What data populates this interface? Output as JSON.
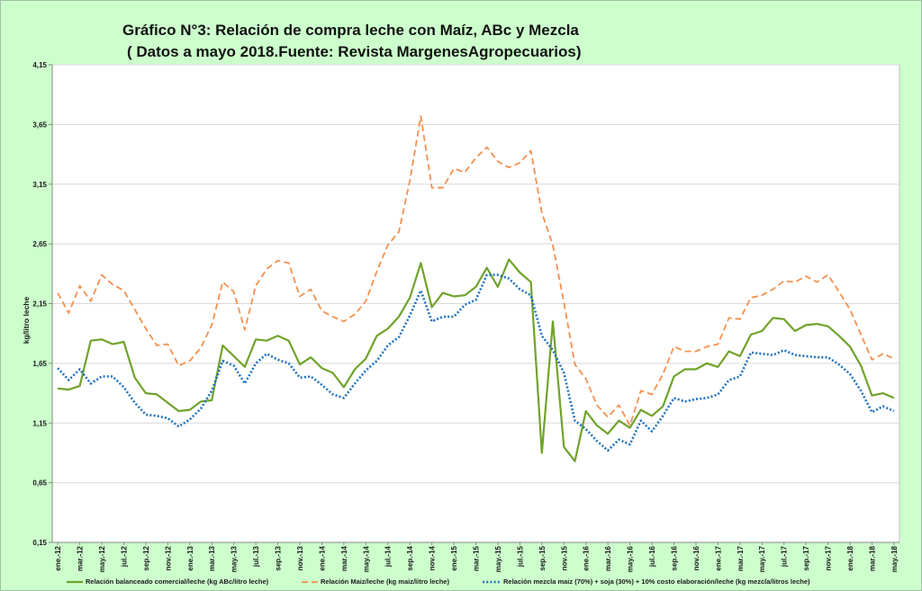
{
  "chart_data": {
    "type": "line",
    "title": "Gráfico N°3: Relación de compra leche con Maíz, ABc y Mezcla",
    "subtitle": "( Datos a mayo 2018.Fuente: Revista MargenesAgropecuarios)",
    "ylabel": "kg/litro leche",
    "ylim": [
      0.15,
      4.15
    ],
    "y_tick_labels": [
      "0,15",
      "0,65",
      "1,15",
      "1,65",
      "2,15",
      "2,65",
      "3,15",
      "3,65",
      "4,15"
    ],
    "x_tick_labels": [
      "ene.-12",
      "mar.-12",
      "may.-12",
      "jul.-12",
      "sep.-12",
      "nov.-12",
      "ene.-13",
      "mar.-13",
      "may.-13",
      "jul.-13",
      "sep.-13",
      "nov.-13",
      "ene.-14",
      "mar.-14",
      "may.-14",
      "jul.-14",
      "sep.-14",
      "nov.-14",
      "ene.-15",
      "mar.-15",
      "may.-15",
      "jul.-15",
      "sep.-15",
      "nov.-15",
      "ene.-16",
      "mar.-16",
      "may.-16",
      "jul.-16",
      "sep.-16",
      "nov.-16",
      "ene.-17",
      "mar.-17",
      "may.-17",
      "jul.-17",
      "sep.-17",
      "nov.-17",
      "ene.-18",
      "mar.-18",
      "may.-18"
    ],
    "grid": true,
    "legend_position": "bottom",
    "series": [
      {
        "name": "Relación balanceado comercial/leche (kg ABc/litro leche)",
        "color": "#6fa32a",
        "line_style": "solid",
        "values": [
          1.44,
          1.43,
          1.46,
          1.84,
          1.85,
          1.81,
          1.83,
          1.53,
          1.4,
          1.39,
          1.32,
          1.25,
          1.26,
          1.33,
          1.34,
          1.8,
          1.71,
          1.62,
          1.85,
          1.84,
          1.88,
          1.84,
          1.64,
          1.7,
          1.61,
          1.57,
          1.45,
          1.6,
          1.69,
          1.88,
          1.94,
          2.04,
          2.2,
          2.49,
          2.12,
          2.24,
          2.21,
          2.22,
          2.29,
          2.45,
          2.29,
          2.52,
          2.41,
          2.33,
          0.9,
          2.0,
          0.95,
          0.83,
          1.25,
          1.13,
          1.06,
          1.17,
          1.11,
          1.26,
          1.21,
          1.29,
          1.54,
          1.6,
          1.6,
          1.65,
          1.62,
          1.75,
          1.71,
          1.89,
          1.92,
          2.03,
          2.02,
          1.92,
          1.97,
          1.98,
          1.96,
          1.88,
          1.79,
          1.63,
          1.38,
          1.4,
          1.36
        ]
      },
      {
        "name": "Relación Maiz/leche (kg maiz/litro leche)",
        "color": "#f4904e",
        "line_style": "dashed",
        "values": [
          2.24,
          2.07,
          2.3,
          2.17,
          2.39,
          2.31,
          2.26,
          2.1,
          1.94,
          1.8,
          1.81,
          1.63,
          1.67,
          1.78,
          1.97,
          2.33,
          2.25,
          1.93,
          2.3,
          2.44,
          2.51,
          2.49,
          2.21,
          2.27,
          2.09,
          2.04,
          2.0,
          2.06,
          2.17,
          2.42,
          2.64,
          2.75,
          3.18,
          3.72,
          3.12,
          3.12,
          3.28,
          3.25,
          3.37,
          3.46,
          3.34,
          3.29,
          3.33,
          3.43,
          2.91,
          2.64,
          2.16,
          1.64,
          1.52,
          1.3,
          1.2,
          1.3,
          1.13,
          1.42,
          1.39,
          1.56,
          1.79,
          1.75,
          1.75,
          1.79,
          1.81,
          2.03,
          2.02,
          2.2,
          2.22,
          2.27,
          2.34,
          2.33,
          2.38,
          2.33,
          2.39,
          2.25,
          2.1,
          1.89,
          1.68,
          1.73,
          1.69
        ]
      },
      {
        "name": "Relación mezcla maiz (70%) + soja (30%) + 10% costo elaboración/leche (kg mezcla/litros leche)",
        "color": "#1e72c2",
        "line_style": "dotted",
        "values": [
          1.61,
          1.51,
          1.6,
          1.48,
          1.54,
          1.54,
          1.45,
          1.32,
          1.22,
          1.21,
          1.19,
          1.12,
          1.18,
          1.27,
          1.42,
          1.67,
          1.63,
          1.48,
          1.65,
          1.73,
          1.68,
          1.65,
          1.53,
          1.54,
          1.47,
          1.39,
          1.36,
          1.48,
          1.59,
          1.67,
          1.8,
          1.87,
          2.05,
          2.26,
          2.0,
          2.04,
          2.04,
          2.14,
          2.18,
          2.39,
          2.39,
          2.36,
          2.27,
          2.22,
          1.88,
          1.76,
          1.57,
          1.17,
          1.1,
          1.0,
          0.92,
          1.01,
          0.97,
          1.17,
          1.08,
          1.21,
          1.36,
          1.33,
          1.35,
          1.36,
          1.39,
          1.51,
          1.54,
          1.74,
          1.73,
          1.72,
          1.76,
          1.72,
          1.71,
          1.7,
          1.7,
          1.64,
          1.56,
          1.42,
          1.24,
          1.29,
          1.25
        ]
      }
    ]
  }
}
